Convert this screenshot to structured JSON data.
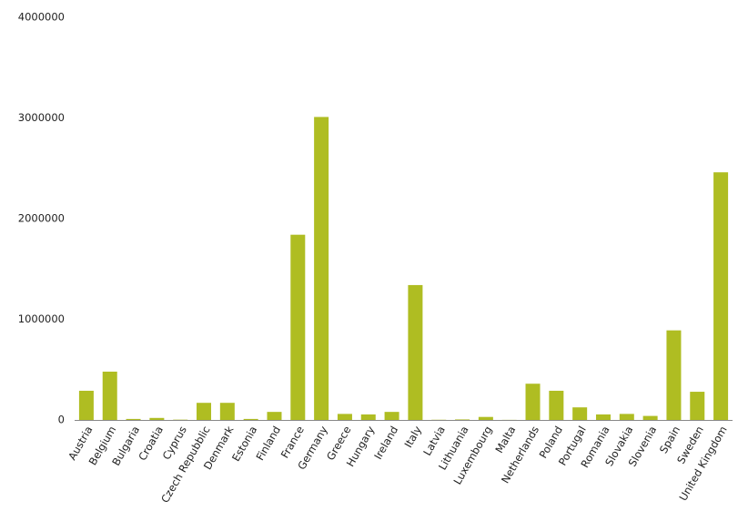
{
  "chart_data": {
    "type": "bar",
    "categories": [
      "Austria",
      "Belgium",
      "Bulgaria",
      "Croatia",
      "Cyprus",
      "Czech Repubblic",
      "Denmark",
      "Estonia",
      "Finland",
      "France",
      "Germany",
      "Greece",
      "Hungary",
      "Ireland",
      "Italy",
      "Latvia",
      "Lithuania",
      "Luxembourg",
      "Malta",
      "Netherlands",
      "Poland",
      "Portugal",
      "Romania",
      "Slovakia",
      "Slovenia",
      "Spain",
      "Sweden",
      "United Kingdom"
    ],
    "values": [
      290000,
      480000,
      10000,
      20000,
      3000,
      170000,
      170000,
      10000,
      80000,
      1840000,
      3010000,
      60000,
      55000,
      80000,
      1340000,
      2000,
      5000,
      30000,
      1000,
      360000,
      290000,
      125000,
      55000,
      60000,
      40000,
      890000,
      280000,
      2460000
    ],
    "color": "#afbd22",
    "ylim": [
      0,
      4000000
    ],
    "yticks": [
      0,
      1000000,
      2000000,
      3000000,
      4000000
    ],
    "grid": false
  }
}
